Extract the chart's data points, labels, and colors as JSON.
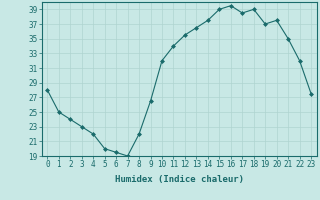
{
  "x": [
    0,
    1,
    2,
    3,
    4,
    5,
    6,
    7,
    8,
    9,
    10,
    11,
    12,
    13,
    14,
    15,
    16,
    17,
    18,
    19,
    20,
    21,
    22,
    23
  ],
  "y": [
    28,
    25,
    24,
    23,
    22,
    20,
    19.5,
    19,
    22,
    26.5,
    32,
    34,
    35.5,
    36.5,
    37.5,
    39,
    39.5,
    38.5,
    39,
    37,
    37.5,
    35,
    32,
    27.5
  ],
  "line_color": "#1a6b6b",
  "marker": "D",
  "marker_size": 2.0,
  "bg_color": "#c8e8e5",
  "grid_color": "#afd4d0",
  "xlabel": "Humidex (Indice chaleur)",
  "xlim": [
    -0.5,
    23.5
  ],
  "ylim": [
    19,
    40
  ],
  "yticks": [
    19,
    21,
    23,
    25,
    27,
    29,
    31,
    33,
    35,
    37,
    39
  ],
  "xticks": [
    0,
    1,
    2,
    3,
    4,
    5,
    6,
    7,
    8,
    9,
    10,
    11,
    12,
    13,
    14,
    15,
    16,
    17,
    18,
    19,
    20,
    21,
    22,
    23
  ],
  "tick_color": "#1a6b6b",
  "label_color": "#1a6b6b",
  "tick_fontsize": 5.5,
  "xlabel_fontsize": 6.5
}
